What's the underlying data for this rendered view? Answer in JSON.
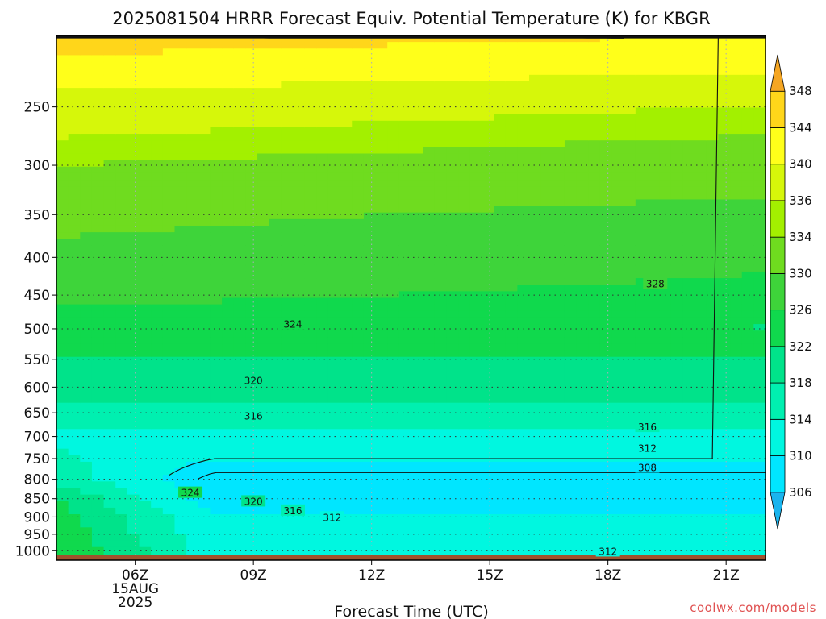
{
  "chart_data": {
    "type": "heatmap",
    "title": "2025081504 HRRR Forecast Equiv. Potential Temperature (K) for KBGR",
    "xlabel": "Forecast Time (UTC)",
    "ylabel": "",
    "x_ticks": [
      {
        "label": "06Z",
        "sub1": "15AUG",
        "sub2": "2025",
        "hour": 6
      },
      {
        "label": "09Z",
        "sub1": "",
        "sub2": "",
        "hour": 9
      },
      {
        "label": "12Z",
        "sub1": "",
        "sub2": "",
        "hour": 12
      },
      {
        "label": "15Z",
        "sub1": "",
        "sub2": "",
        "hour": 15
      },
      {
        "label": "18Z",
        "sub1": "",
        "sub2": "",
        "hour": 18
      },
      {
        "label": "21Z",
        "sub1": "",
        "sub2": "",
        "hour": 21
      }
    ],
    "xlim": [
      4,
      22
    ],
    "y_ticks": [
      250,
      300,
      350,
      400,
      450,
      500,
      550,
      600,
      650,
      700,
      750,
      800,
      850,
      900,
      950,
      1000
    ],
    "ylim": [
      1030,
      200
    ],
    "y_scale": "log-pressure",
    "surface_pressure": 1014,
    "colorbar": {
      "ticks": [
        306,
        310,
        314,
        318,
        322,
        326,
        330,
        334,
        336,
        340,
        344,
        348
      ],
      "colors": [
        "#1ab4ee",
        "#00e6ff",
        "#00f7e0",
        "#00f0b0",
        "#00e38a",
        "#10d94d",
        "#3ed43a",
        "#6fdc1f",
        "#a3f000",
        "#d6f70a",
        "#ffff1a",
        "#ffd61a",
        "#f5a623"
      ]
    },
    "contour_labels": [
      {
        "text": "328",
        "hour": 19.2,
        "p": 435
      },
      {
        "text": "324",
        "hour": 10.0,
        "p": 493
      },
      {
        "text": "320",
        "hour": 9.0,
        "p": 588
      },
      {
        "text": "316",
        "hour": 9.0,
        "p": 657
      },
      {
        "text": "316",
        "hour": 19.0,
        "p": 680
      },
      {
        "text": "312",
        "hour": 19.0,
        "p": 727
      },
      {
        "text": "308",
        "hour": 19.0,
        "p": 772
      },
      {
        "text": "324",
        "hour": 7.4,
        "p": 835
      },
      {
        "text": "320",
        "hour": 9.0,
        "p": 858
      },
      {
        "text": "316",
        "hour": 10.0,
        "p": 883
      },
      {
        "text": "312",
        "hour": 11.0,
        "p": 902
      },
      {
        "text": "312",
        "hour": 18.0,
        "p": 1003
      }
    ],
    "profile": [
      {
        "p": 200,
        "theta": 346
      },
      {
        "p": 250,
        "theta": 338
      },
      {
        "p": 300,
        "theta": 334
      },
      {
        "p": 350,
        "theta": 331
      },
      {
        "p": 400,
        "theta": 329
      },
      {
        "p": 450,
        "theta": 327
      },
      {
        "p": 500,
        "theta": 324
      },
      {
        "p": 550,
        "theta": 322
      },
      {
        "p": 600,
        "theta": 319.5
      },
      {
        "p": 650,
        "theta": 317
      },
      {
        "p": 700,
        "theta": 313
      },
      {
        "p": 750,
        "theta": 310
      },
      {
        "p": 800,
        "theta": 307
      },
      {
        "p": 850,
        "theta": 308
      },
      {
        "p": 900,
        "theta": 310
      },
      {
        "p": 950,
        "theta": 311
      },
      {
        "p": 1000,
        "theta": 312
      },
      {
        "p": 1030,
        "theta": 312
      }
    ]
  },
  "credit": "coolwx.com/models"
}
